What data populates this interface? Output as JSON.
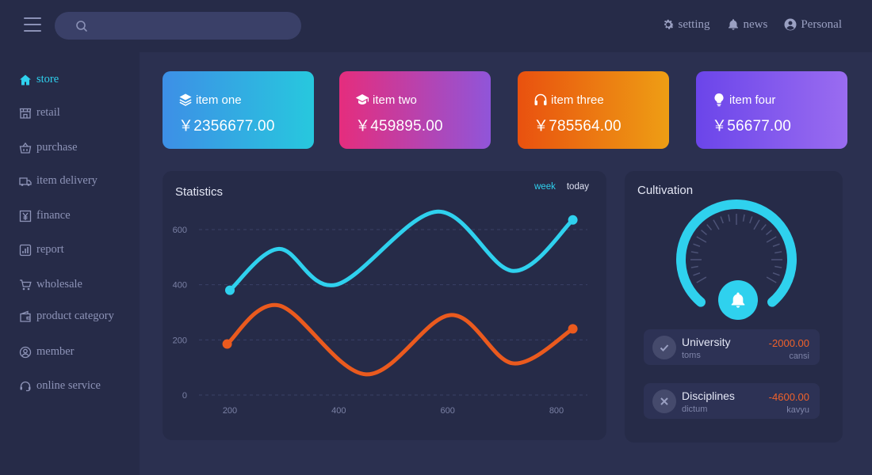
{
  "search": {
    "placeholder": ""
  },
  "header": {
    "actions": [
      {
        "label": "setting",
        "icon": "gear-icon"
      },
      {
        "label": "news",
        "icon": "bell-icon"
      },
      {
        "label": "Personal",
        "icon": "user-icon"
      }
    ]
  },
  "sidebar": {
    "items": [
      {
        "label": "store",
        "icon": "home-icon",
        "active": true
      },
      {
        "label": "retail",
        "icon": "shop-icon"
      },
      {
        "label": "purchase",
        "icon": "basket-icon"
      },
      {
        "label": "item delivery",
        "icon": "truck-icon"
      },
      {
        "label": "finance",
        "icon": "yen-icon"
      },
      {
        "label": "report",
        "icon": "report-icon"
      },
      {
        "label": "wholesale",
        "icon": "cart-icon"
      },
      {
        "label": "product category",
        "icon": "wallet-icon"
      },
      {
        "label": "member",
        "icon": "member-icon"
      },
      {
        "label": "online service",
        "icon": "headset-icon"
      }
    ]
  },
  "cards": [
    {
      "title": "item one",
      "value": "￥2356677.00",
      "icon": "layers-icon"
    },
    {
      "title": "item two",
      "value": "￥459895.00",
      "icon": "graduation-cap-icon"
    },
    {
      "title": "item three",
      "value": "￥785564.00",
      "icon": "headphones-icon"
    },
    {
      "title": "item four",
      "value": "￥56677.00",
      "icon": "lightbulb-icon"
    }
  ],
  "statistics": {
    "title": "Statistics",
    "tabs": [
      {
        "label": "week",
        "active": true
      },
      {
        "label": "today",
        "active": false
      }
    ]
  },
  "chart_data": {
    "type": "line",
    "x_ticks": [
      "200",
      "400",
      "600",
      "800"
    ],
    "y_ticks": [
      "0",
      "200",
      "400",
      "600"
    ],
    "xlim": [
      200,
      800
    ],
    "ylim": [
      0,
      600
    ],
    "grid": true,
    "series": [
      {
        "color": "#2fd1ee",
        "points": [
          [
            200,
            380
          ],
          [
            290,
            530
          ],
          [
            395,
            400
          ],
          [
            580,
            665
          ],
          [
            720,
            450
          ],
          [
            830,
            635
          ]
        ]
      },
      {
        "color": "#ea5a1e",
        "points": [
          [
            195,
            185
          ],
          [
            290,
            325
          ],
          [
            450,
            75
          ],
          [
            605,
            290
          ],
          [
            720,
            115
          ],
          [
            830,
            240
          ]
        ]
      }
    ]
  },
  "cultivation": {
    "title": "Cultivation",
    "gauge_color": "#2fd1ee",
    "transactions": [
      {
        "name": "University",
        "sub": "toms",
        "amount": "-2000.00",
        "amount_sub": "cansi",
        "icon": "check-icon"
      },
      {
        "name": "Disciplines",
        "sub": "dictum",
        "amount": "-4600.00",
        "amount_sub": "kavyu",
        "icon": "close-icon"
      }
    ]
  }
}
